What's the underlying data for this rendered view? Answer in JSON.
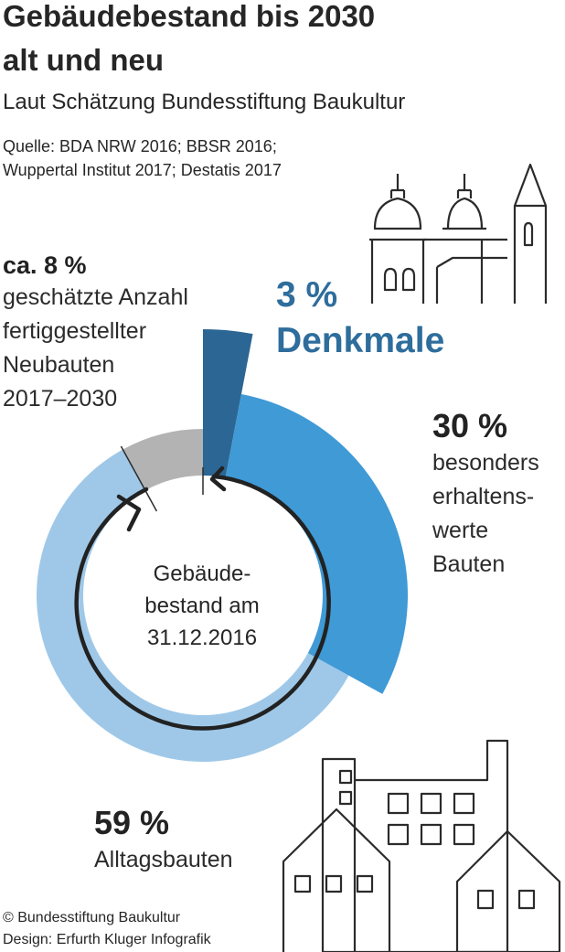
{
  "title_line1": "Gebäudebestand bis 2030",
  "title_line2": "alt und neu",
  "subtitle": "Laut Schätzung Bundesstiftung Baukultur",
  "source_line1": "Quelle: BDA NRW 2016; BBSR 2016;",
  "source_line2": "Wuppertal Institut 2017; Destatis 2017",
  "center_label": [
    "Gebäude-",
    "bestand am",
    "31.12.2016"
  ],
  "credits": [
    "© Bundesstiftung Baukultur",
    "Design: Erfurth Kluger Infografik"
  ],
  "colors": {
    "denkmale": "#2b6694",
    "besonders": "#3f9ad6",
    "alltag": "#9fc8e8",
    "neubau": "#b3b3b3"
  },
  "chart_data": {
    "type": "pie",
    "variant": "donut",
    "slices": [
      {
        "pct_label": "3 %",
        "label": "Denkmale",
        "value": 3
      },
      {
        "pct_label": "30 %",
        "label_lines": [
          "besonders",
          "erhaltens-",
          "werte",
          "Bauten"
        ],
        "value": 30
      },
      {
        "pct_label": "59 %",
        "label": "Alltagsbauten",
        "value": 59
      },
      {
        "pct_label": "ca. 8 %",
        "label_lines": [
          "geschätzte Anzahl",
          "fertiggestellter",
          "Neubauten",
          "2017–2030"
        ],
        "value": 8
      }
    ]
  },
  "icons": [
    "church-icon",
    "houses-factory-icon",
    "arrow-cycle-icon"
  ]
}
